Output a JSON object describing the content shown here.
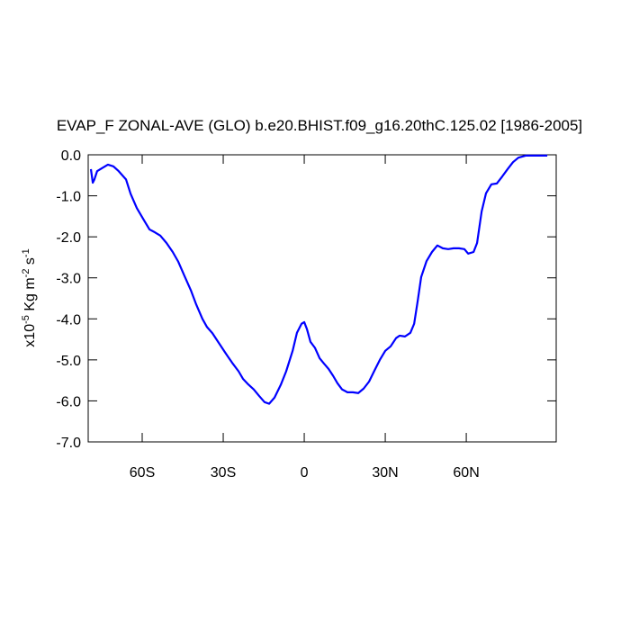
{
  "chart_data": {
    "type": "line",
    "title": "EVAP_F ZONAL-AVE (GLO) b.e20.BHIST.f09_g16.20thC.125.02 [1986-2005]",
    "ylabel": [
      {
        "text": "x10"
      },
      {
        "text": "-5",
        "sup": true
      },
      {
        "text": " Kg m"
      },
      {
        "text": "-2",
        "sup": true
      },
      {
        "text": " s"
      },
      {
        "text": "-1",
        "sup": true
      }
    ],
    "x": [
      -79,
      -78.3,
      -77.7,
      -76.7,
      -75,
      -72.7,
      -70.7,
      -68.7,
      -66,
      -64.3,
      -62,
      -59.3,
      -57.3,
      -55.3,
      -53.3,
      -51,
      -48.7,
      -46.7,
      -44.3,
      -42,
      -40,
      -37.7,
      -36,
      -34,
      -32,
      -29.3,
      -26.7,
      -24.3,
      -22.7,
      -20.7,
      -18.7,
      -16.7,
      -14.7,
      -13,
      -11,
      -8.7,
      -6.7,
      -4.3,
      -2.7,
      -1,
      0,
      1,
      2.3,
      4,
      5.7,
      7.3,
      9,
      10.7,
      12.3,
      14,
      16,
      18,
      20,
      22,
      24,
      26,
      28,
      30,
      32,
      34,
      35.3,
      37.3,
      39.3,
      40.7,
      42,
      43.3,
      45.3,
      47.3,
      49.3,
      51.3,
      53.3,
      55.3,
      57.3,
      59.3,
      60.7,
      62.7,
      64,
      65.7,
      67.3,
      69.3,
      71.3,
      73.3,
      75.3,
      77.3,
      79.3,
      82,
      85.7,
      90
    ],
    "series": [
      {
        "name": "EVAP_F",
        "color": "#0000ff",
        "values": [
          -0.35,
          -0.68,
          -0.6,
          -0.4,
          -0.33,
          -0.24,
          -0.28,
          -0.4,
          -0.6,
          -0.95,
          -1.3,
          -1.6,
          -1.82,
          -1.89,
          -1.97,
          -2.15,
          -2.37,
          -2.6,
          -2.96,
          -3.3,
          -3.65,
          -4.0,
          -4.2,
          -4.35,
          -4.55,
          -4.82,
          -5.07,
          -5.28,
          -5.46,
          -5.6,
          -5.72,
          -5.88,
          -6.03,
          -6.07,
          -5.92,
          -5.61,
          -5.28,
          -4.78,
          -4.34,
          -4.12,
          -4.08,
          -4.25,
          -4.56,
          -4.71,
          -4.96,
          -5.09,
          -5.22,
          -5.39,
          -5.57,
          -5.72,
          -5.79,
          -5.79,
          -5.81,
          -5.7,
          -5.53,
          -5.26,
          -5.0,
          -4.78,
          -4.67,
          -4.47,
          -4.41,
          -4.43,
          -4.34,
          -4.12,
          -3.57,
          -2.98,
          -2.59,
          -2.37,
          -2.21,
          -2.28,
          -2.3,
          -2.28,
          -2.28,
          -2.3,
          -2.41,
          -2.37,
          -2.15,
          -1.38,
          -0.94,
          -0.72,
          -0.7,
          -0.53,
          -0.35,
          -0.18,
          -0.07,
          -0.02,
          -0.02,
          -0.02
        ]
      }
    ],
    "xlim": [
      -80,
      93.3
    ],
    "ylim": [
      -7,
      0
    ],
    "xticks": [
      {
        "value": -60,
        "label": "60S"
      },
      {
        "value": -30,
        "label": "30S"
      },
      0,
      {
        "value": 30,
        "label": "30N"
      },
      {
        "value": 60,
        "label": "60N"
      }
    ],
    "yticks": [
      {
        "value": 0,
        "label": "0.0"
      },
      {
        "value": -1,
        "label": "-1.0"
      },
      {
        "value": -2,
        "label": "-2.0"
      },
      {
        "value": -3,
        "label": "-3.0"
      },
      {
        "value": -4,
        "label": "-4.0"
      },
      {
        "value": -5,
        "label": "-5.0"
      },
      {
        "value": -6,
        "label": "-6.0"
      },
      {
        "value": -7,
        "label": "-7.0"
      }
    ],
    "grid": false
  }
}
